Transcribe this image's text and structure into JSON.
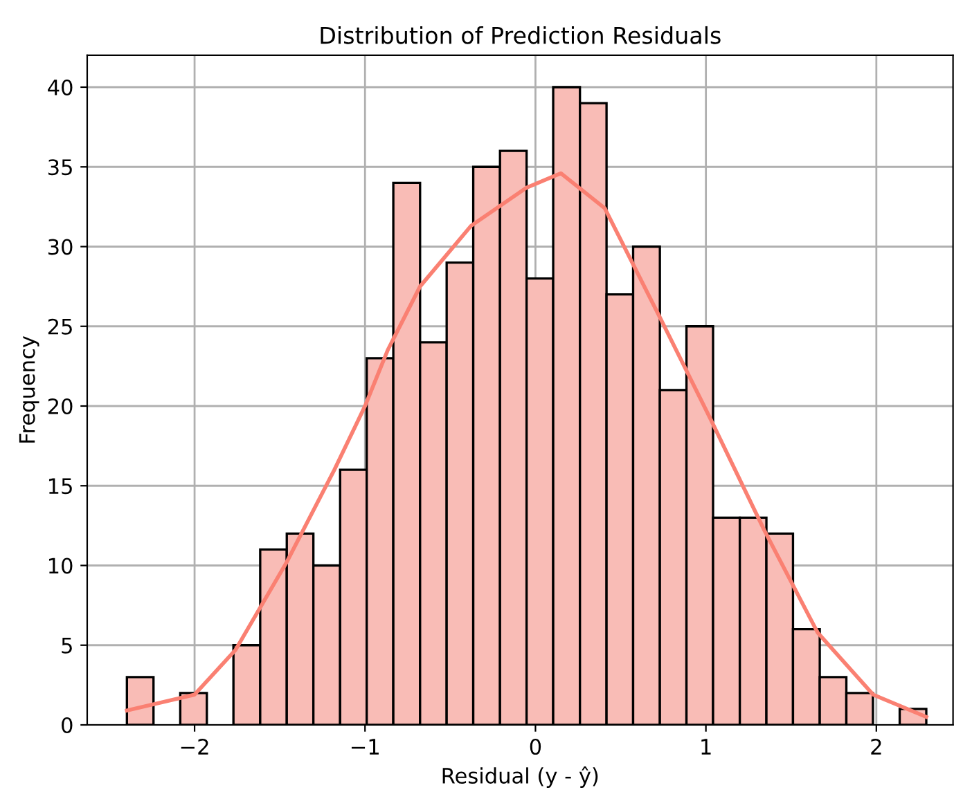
{
  "chart_data": {
    "type": "histogram",
    "title": "Distribution of Prediction Residuals",
    "xlabel": "Residual (y - ŷ)",
    "ylabel": "Frequency",
    "bins": [
      -2.397,
      -2.241,
      -2.084,
      -1.928,
      -1.772,
      -1.615,
      -1.459,
      -1.303,
      -1.146,
      -0.99,
      -0.834,
      -0.677,
      -0.521,
      -0.365,
      -0.208,
      -0.052,
      0.104,
      0.261,
      0.417,
      0.573,
      0.73,
      0.886,
      1.042,
      1.199,
      1.355,
      1.511,
      1.668,
      1.824,
      1.98,
      2.137,
      2.293
    ],
    "values": [
      3,
      0,
      2,
      0,
      5,
      11,
      12,
      10,
      16,
      23,
      34,
      24,
      29,
      35,
      36,
      28,
      40,
      39,
      27,
      30,
      21,
      25,
      13,
      13,
      12,
      6,
      3,
      2,
      0,
      1
    ],
    "color": "#f9bcb6",
    "series": [
      {
        "type": "line",
        "color": "#fa8072",
        "x": [
          -2.397,
          -2.0,
          -1.76,
          -1.46,
          -1.18,
          -1.0,
          -0.867,
          -0.677,
          -0.378,
          -0.052,
          0.149,
          0.407,
          0.733,
          1.031,
          1.343,
          1.655,
          1.981,
          2.293
        ],
        "values": [
          0.9,
          1.9,
          4.7,
          10.2,
          16.0,
          20.0,
          23.5,
          27.5,
          31.3,
          33.7,
          34.6,
          32.4,
          25.5,
          19.1,
          12.2,
          5.8,
          1.9,
          0.5
        ]
      }
    ],
    "xlim": [
      -2.63,
      2.45
    ],
    "ylim": [
      0,
      42
    ],
    "xticks": [
      -2,
      -1,
      0,
      1,
      2
    ],
    "yticks": [
      0,
      5,
      10,
      15,
      20,
      25,
      30,
      35,
      40
    ],
    "grid": true
  }
}
